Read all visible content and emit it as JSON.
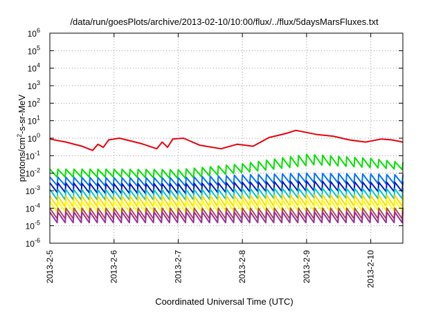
{
  "chart_data": {
    "type": "line",
    "title": "/data/run/goesPlots/archive/2013-02-10/10:00/flux/../flux/5daysMarsFluxes.txt",
    "xlabel": "Coordinated Universal Time (UTC)",
    "ylabel": "protons/cm2-s-sr-MeV",
    "ylabel_parts": [
      "protons/cm",
      "2",
      "-s-sr-MeV"
    ],
    "y_scale": "log",
    "ylim_exp": [
      -6,
      6
    ],
    "y_ticks": [
      {
        "base": "10",
        "exp": "-6",
        "value": -6
      },
      {
        "base": "10",
        "exp": "-5",
        "value": -5
      },
      {
        "base": "10",
        "exp": "-4",
        "value": -4
      },
      {
        "base": "10",
        "exp": "-3",
        "value": -3
      },
      {
        "base": "10",
        "exp": "-2",
        "value": -2
      },
      {
        "base": "10",
        "exp": "-1",
        "value": -1
      },
      {
        "base": "10",
        "exp": "0",
        "value": 0
      },
      {
        "base": "10",
        "exp": "1",
        "value": 1
      },
      {
        "base": "10",
        "exp": "2",
        "value": 2
      },
      {
        "base": "10",
        "exp": "3",
        "value": 3
      },
      {
        "base": "10",
        "exp": "4",
        "value": 4
      },
      {
        "base": "10",
        "exp": "5",
        "value": 5
      },
      {
        "base": "10",
        "exp": "6",
        "value": 6
      }
    ],
    "xlim": [
      "2013-02-05T00:00",
      "2013-02-10T12:00"
    ],
    "x_ticks": [
      {
        "label": "2013-2-5",
        "date": "2013-02-05"
      },
      {
        "label": "2013-2-6",
        "date": "2013-02-06"
      },
      {
        "label": "2013-2-7",
        "date": "2013-02-07"
      },
      {
        "label": "2013-2-8",
        "date": "2013-02-08"
      },
      {
        "label": "2013-2-9",
        "date": "2013-02-09"
      },
      {
        "label": "2013-2-10",
        "date": "2013-02-10"
      }
    ],
    "grid": true,
    "legend": "none",
    "series": [
      {
        "color": "#e8000b",
        "sawtooth": false,
        "x": [
          "2013-02-05T00:00",
          "2013-02-05T06:00",
          "2013-02-05T12:00",
          "2013-02-05T16:00",
          "2013-02-05T18:00",
          "2013-02-05T20:00",
          "2013-02-05T22:00",
          "2013-02-06T02:00",
          "2013-02-06T10:00",
          "2013-02-06T16:00",
          "2013-02-06T18:00",
          "2013-02-06T20:00",
          "2013-02-06T22:00",
          "2013-02-07T02:00",
          "2013-02-07T08:00",
          "2013-02-07T16:00",
          "2013-02-07T22:00",
          "2013-02-08T04:00",
          "2013-02-08T10:00",
          "2013-02-08T16:00",
          "2013-02-08T20:00",
          "2013-02-09T04:00",
          "2013-02-09T10:00",
          "2013-02-09T16:00",
          "2013-02-09T22:00",
          "2013-02-10T04:00",
          "2013-02-10T08:00",
          "2013-02-10T12:00"
        ],
        "y": [
          0.9,
          0.6,
          0.35,
          0.2,
          0.45,
          0.3,
          0.8,
          1.0,
          0.5,
          0.25,
          0.6,
          0.3,
          0.9,
          1.0,
          0.4,
          0.25,
          0.45,
          0.35,
          1.1,
          1.8,
          2.8,
          1.6,
          1.3,
          0.8,
          0.6,
          0.9,
          0.8,
          0.6
        ]
      },
      {
        "color": "#00e000",
        "sawtooth": true,
        "x": [
          "2013-02-05T00:00",
          "2013-02-06T00:00",
          "2013-02-07T00:00",
          "2013-02-08T00:00",
          "2013-02-09T00:00",
          "2013-02-10T00:00",
          "2013-02-10T12:00"
        ],
        "low": [
          0.006,
          0.006,
          0.005,
          0.012,
          0.03,
          0.02,
          0.015
        ],
        "high": [
          0.017,
          0.017,
          0.016,
          0.035,
          0.12,
          0.07,
          0.04
        ]
      },
      {
        "color": "#0070ff",
        "sawtooth": true,
        "x": [
          "2013-02-05T00:00",
          "2013-02-06T00:00",
          "2013-02-07T00:00",
          "2013-02-08T00:00",
          "2013-02-09T00:00",
          "2013-02-10T00:00",
          "2013-02-10T12:00"
        ],
        "low": [
          0.002,
          0.0018,
          0.0018,
          0.0025,
          0.003,
          0.0025,
          0.0025
        ],
        "high": [
          0.006,
          0.0055,
          0.0055,
          0.008,
          0.01,
          0.009,
          0.008
        ]
      },
      {
        "color": "#0018c8",
        "sawtooth": true,
        "x": [
          "2013-02-05T00:00",
          "2013-02-06T00:00",
          "2013-02-07T00:00",
          "2013-02-08T00:00",
          "2013-02-09T00:00",
          "2013-02-10T00:00",
          "2013-02-10T12:00"
        ],
        "low": [
          0.0008,
          0.0007,
          0.0007,
          0.0009,
          0.001,
          0.0009,
          0.0009
        ],
        "high": [
          0.0028,
          0.0025,
          0.0025,
          0.003,
          0.0035,
          0.003,
          0.003
        ]
      },
      {
        "color": "#00c8c8",
        "sawtooth": true,
        "x": [
          "2013-02-05T00:00",
          "2013-02-06T00:00",
          "2013-02-07T00:00",
          "2013-02-08T00:00",
          "2013-02-09T00:00",
          "2013-02-10T00:00",
          "2013-02-10T12:00"
        ],
        "low": [
          0.0003,
          0.0003,
          0.0003,
          0.00035,
          0.0004,
          0.00035,
          0.00035
        ],
        "high": [
          0.0012,
          0.0011,
          0.0011,
          0.0013,
          0.0014,
          0.0013,
          0.0013
        ]
      },
      {
        "color": "#ffd700",
        "sawtooth": true,
        "x": [
          "2013-02-05T00:00",
          "2013-02-06T00:00",
          "2013-02-07T00:00",
          "2013-02-08T00:00",
          "2013-02-09T00:00",
          "2013-02-10T00:00",
          "2013-02-10T12:00"
        ],
        "low": [
          0.00012,
          0.00012,
          0.00012,
          0.00013,
          0.00014,
          0.00013,
          0.00013
        ],
        "high": [
          0.0005,
          0.0005,
          0.0005,
          0.00055,
          0.0006,
          0.00055,
          0.00055
        ]
      },
      {
        "color": "#ffff00",
        "sawtooth": true,
        "x": [
          "2013-02-05T00:00",
          "2013-02-06T00:00",
          "2013-02-07T00:00",
          "2013-02-08T00:00",
          "2013-02-09T00:00",
          "2013-02-10T00:00",
          "2013-02-10T12:00"
        ],
        "low": [
          6e-05,
          6e-05,
          6e-05,
          7e-05,
          7e-05,
          7e-05,
          7e-05
        ],
        "high": [
          0.00025,
          0.00025,
          0.00025,
          0.0003,
          0.0003,
          0.0003,
          0.0003
        ]
      },
      {
        "color": "#a84c4c",
        "sawtooth": true,
        "x": [
          "2013-02-05T00:00",
          "2013-02-06T00:00",
          "2013-02-07T00:00",
          "2013-02-08T00:00",
          "2013-02-09T00:00",
          "2013-02-10T00:00",
          "2013-02-10T12:00"
        ],
        "low": [
          2.5e-05,
          2.5e-05,
          2.5e-05,
          2.5e-05,
          2.5e-05,
          2.5e-05,
          2.5e-05
        ],
        "high": [
          0.0001,
          0.0001,
          0.0001,
          0.0001,
          0.0001,
          0.0001,
          0.0001
        ]
      },
      {
        "color": "#9a2f9a",
        "sawtooth": true,
        "x": [
          "2013-02-05T00:00",
          "2013-02-06T00:00",
          "2013-02-07T00:00",
          "2013-02-08T00:00",
          "2013-02-09T00:00",
          "2013-02-10T00:00",
          "2013-02-10T12:00"
        ],
        "low": [
          1.5e-05,
          1.5e-05,
          1.5e-05,
          1.5e-05,
          1.5e-05,
          1.5e-05,
          1.5e-05
        ],
        "high": [
          6e-05,
          6e-05,
          6e-05,
          6e-05,
          6e-05,
          6e-05,
          6e-05
        ]
      }
    ]
  }
}
